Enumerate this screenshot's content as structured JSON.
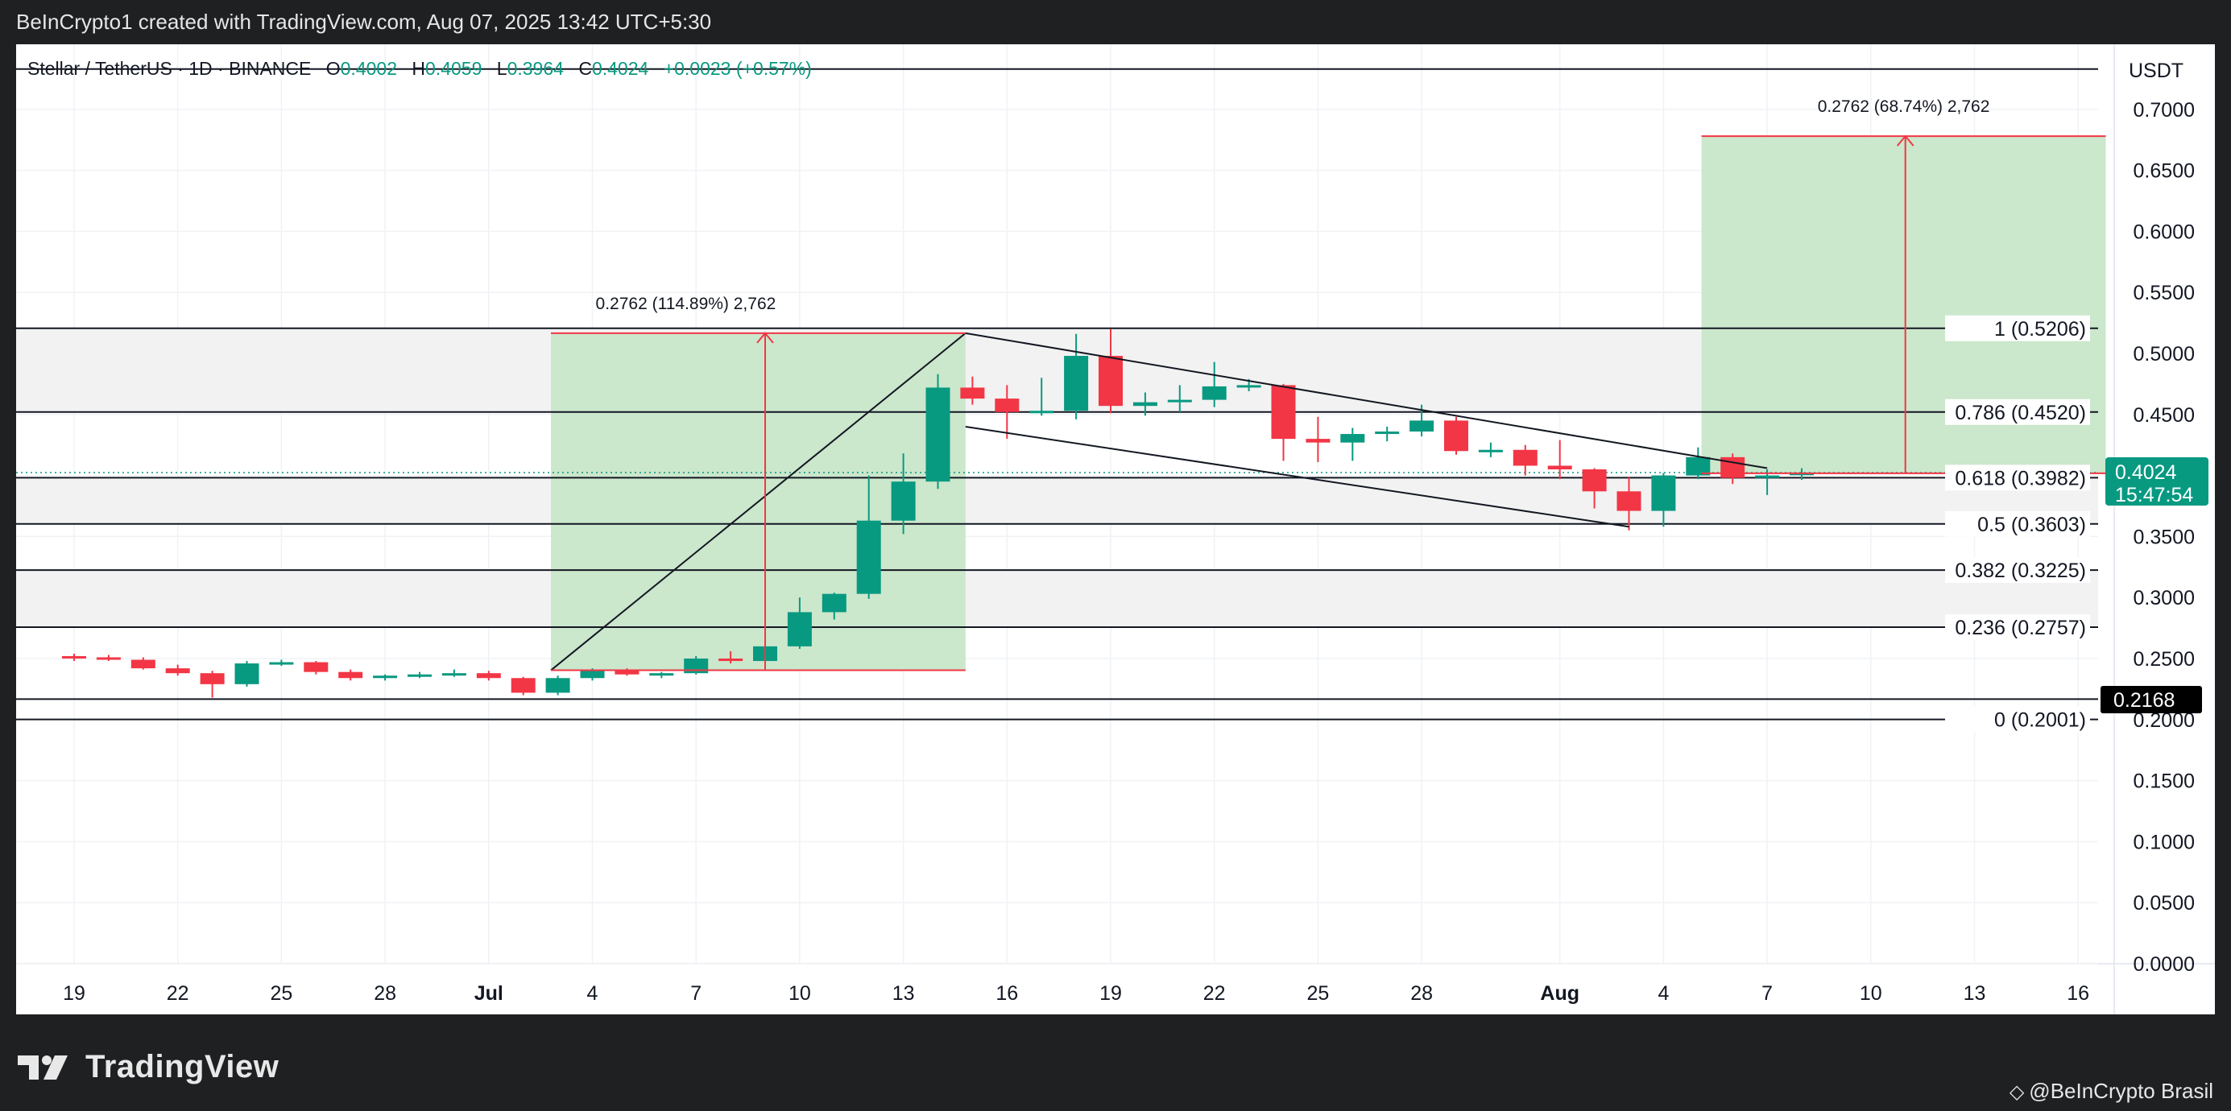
{
  "header": {
    "attribution": "BeInCrypto1 created with TradingView.com, Aug 07, 2025 13:42 UTC+5:30"
  },
  "legend": {
    "symbol": "Stellar / TetherUS · 1D · BINANCE",
    "o_label": "O",
    "o_value": "0.4002",
    "h_label": "H",
    "h_value": "0.4059",
    "l_label": "L",
    "l_value": "0.3964",
    "c_label": "C",
    "c_value": "0.4024",
    "change": "+0.0023 (+0.57%)"
  },
  "price_axis": {
    "currency": "USDT",
    "last_price": "0.4024",
    "countdown": "15:47:54",
    "marker_price": "0.2168"
  },
  "footer": {
    "logo_text": "TradingView",
    "credit": "@BeInCrypto Brasil"
  },
  "colors": {
    "up": "#089981",
    "down": "#f23645",
    "target_fill": "#c8e6c9",
    "fib_band": "#f2f2f2",
    "last_price_bg": "#089981",
    "marker_bg": "#000000"
  },
  "chart_data": {
    "type": "candlestick",
    "ylim": [
      0.0,
      0.72
    ],
    "y_ticks": [
      "0.7000",
      "0.6500",
      "0.6000",
      "0.5500",
      "0.5000",
      "0.4500",
      "0.4000",
      "0.3500",
      "0.3000",
      "0.2500",
      "0.2000",
      "0.1500",
      "0.1000",
      "0.0500",
      "0.0000"
    ],
    "y_tick_values": [
      0.7,
      0.65,
      0.6,
      0.55,
      0.5,
      0.45,
      0.4,
      0.35,
      0.3,
      0.25,
      0.2,
      0.15,
      0.1,
      0.05,
      0.0
    ],
    "x_ticks": [
      {
        "label": "19",
        "day": 0
      },
      {
        "label": "22",
        "day": 3
      },
      {
        "label": "25",
        "day": 6
      },
      {
        "label": "28",
        "day": 9
      },
      {
        "label": "Jul",
        "day": 12
      },
      {
        "label": "4",
        "day": 15
      },
      {
        "label": "7",
        "day": 18
      },
      {
        "label": "10",
        "day": 21
      },
      {
        "label": "13",
        "day": 24
      },
      {
        "label": "16",
        "day": 27
      },
      {
        "label": "19",
        "day": 30
      },
      {
        "label": "22",
        "day": 33
      },
      {
        "label": "25",
        "day": 36
      },
      {
        "label": "28",
        "day": 39
      },
      {
        "label": "Aug",
        "day": 43
      },
      {
        "label": "4",
        "day": 46
      },
      {
        "label": "7",
        "day": 49
      },
      {
        "label": "10",
        "day": 52
      },
      {
        "label": "13",
        "day": 55
      },
      {
        "label": "16",
        "day": 58
      }
    ],
    "candles": [
      [
        0.252,
        0.254,
        0.248,
        0.251
      ],
      [
        0.251,
        0.253,
        0.248,
        0.249
      ],
      [
        0.249,
        0.251,
        0.241,
        0.242
      ],
      [
        0.242,
        0.245,
        0.236,
        0.238
      ],
      [
        0.238,
        0.24,
        0.218,
        0.229
      ],
      [
        0.229,
        0.248,
        0.227,
        0.246
      ],
      [
        0.246,
        0.249,
        0.244,
        0.247
      ],
      [
        0.247,
        0.248,
        0.237,
        0.239
      ],
      [
        0.239,
        0.241,
        0.232,
        0.234
      ],
      [
        0.234,
        0.237,
        0.232,
        0.236
      ],
      [
        0.236,
        0.239,
        0.234,
        0.237
      ],
      [
        0.237,
        0.241,
        0.235,
        0.238
      ],
      [
        0.238,
        0.24,
        0.232,
        0.234
      ],
      [
        0.234,
        0.235,
        0.22,
        0.222
      ],
      [
        0.222,
        0.236,
        0.22,
        0.234
      ],
      [
        0.234,
        0.242,
        0.232,
        0.24
      ],
      [
        0.24,
        0.242,
        0.236,
        0.237
      ],
      [
        0.237,
        0.239,
        0.234,
        0.238
      ],
      [
        0.238,
        0.252,
        0.237,
        0.25
      ],
      [
        0.25,
        0.256,
        0.246,
        0.248
      ],
      [
        0.248,
        0.262,
        0.242,
        0.26
      ],
      [
        0.26,
        0.3,
        0.258,
        0.288
      ],
      [
        0.288,
        0.304,
        0.282,
        0.303
      ],
      [
        0.303,
        0.4,
        0.299,
        0.363
      ],
      [
        0.363,
        0.418,
        0.352,
        0.395
      ],
      [
        0.395,
        0.483,
        0.389,
        0.472
      ],
      [
        0.472,
        0.481,
        0.458,
        0.463
      ],
      [
        0.463,
        0.474,
        0.43,
        0.452
      ],
      [
        0.452,
        0.48,
        0.449,
        0.453
      ],
      [
        0.453,
        0.516,
        0.446,
        0.498
      ],
      [
        0.498,
        0.52,
        0.451,
        0.457
      ],
      [
        0.457,
        0.468,
        0.449,
        0.46
      ],
      [
        0.46,
        0.474,
        0.452,
        0.462
      ],
      [
        0.462,
        0.493,
        0.456,
        0.473
      ],
      [
        0.473,
        0.479,
        0.469,
        0.474
      ],
      [
        0.474,
        0.475,
        0.412,
        0.43
      ],
      [
        0.43,
        0.448,
        0.411,
        0.427
      ],
      [
        0.427,
        0.439,
        0.412,
        0.434
      ],
      [
        0.434,
        0.44,
        0.428,
        0.436
      ],
      [
        0.436,
        0.458,
        0.432,
        0.445
      ],
      [
        0.445,
        0.448,
        0.417,
        0.42
      ],
      [
        0.42,
        0.427,
        0.415,
        0.421
      ],
      [
        0.421,
        0.425,
        0.4,
        0.408
      ],
      [
        0.408,
        0.429,
        0.397,
        0.405
      ],
      [
        0.405,
        0.406,
        0.373,
        0.387
      ],
      [
        0.387,
        0.399,
        0.355,
        0.371
      ],
      [
        0.371,
        0.402,
        0.358,
        0.4
      ],
      [
        0.4,
        0.423,
        0.397,
        0.415
      ],
      [
        0.415,
        0.418,
        0.393,
        0.398
      ],
      [
        0.398,
        0.405,
        0.384,
        0.4
      ],
      [
        0.4002,
        0.4059,
        0.3964,
        0.4024
      ]
    ],
    "fib_levels": [
      {
        "label": "1 (0.5206)",
        "value": 0.5206
      },
      {
        "label": "0.786 (0.4520)",
        "value": 0.452
      },
      {
        "label": "0.618 (0.3982)",
        "value": 0.3982
      },
      {
        "label": "0.5 (0.3603)",
        "value": 0.3603
      },
      {
        "label": "0.382 (0.3225)",
        "value": 0.3225
      },
      {
        "label": "0.236 (0.2757)",
        "value": 0.2757
      },
      {
        "label": "0 (0.2001)",
        "value": 0.2001
      }
    ],
    "top_line_value": 0.733,
    "marker_line_value": 0.2168,
    "measure_1": {
      "label": "0.2762 (114.89%) 2,762",
      "day_start": 13.8,
      "day_end": 25.8,
      "from": 0.2404,
      "to": 0.5166,
      "arrow_day": 20.0
    },
    "measure_2": {
      "label": "0.2762 (68.74%) 2,762",
      "day_start": 47.1,
      "day_end": 58.8,
      "from": 0.4018,
      "to": 0.678,
      "arrow_day": 53.0
    },
    "impulse_line": {
      "from_day": 13.8,
      "from": 0.2404,
      "to_day": 25.8,
      "to": 0.5166
    },
    "channel_upper": {
      "from_day": 25.8,
      "from": 0.5166,
      "to_day": 49.0,
      "to": 0.406
    },
    "channel_lower": {
      "from_day": 25.8,
      "from": 0.44,
      "to_day": 45.0,
      "to": 0.358
    }
  }
}
